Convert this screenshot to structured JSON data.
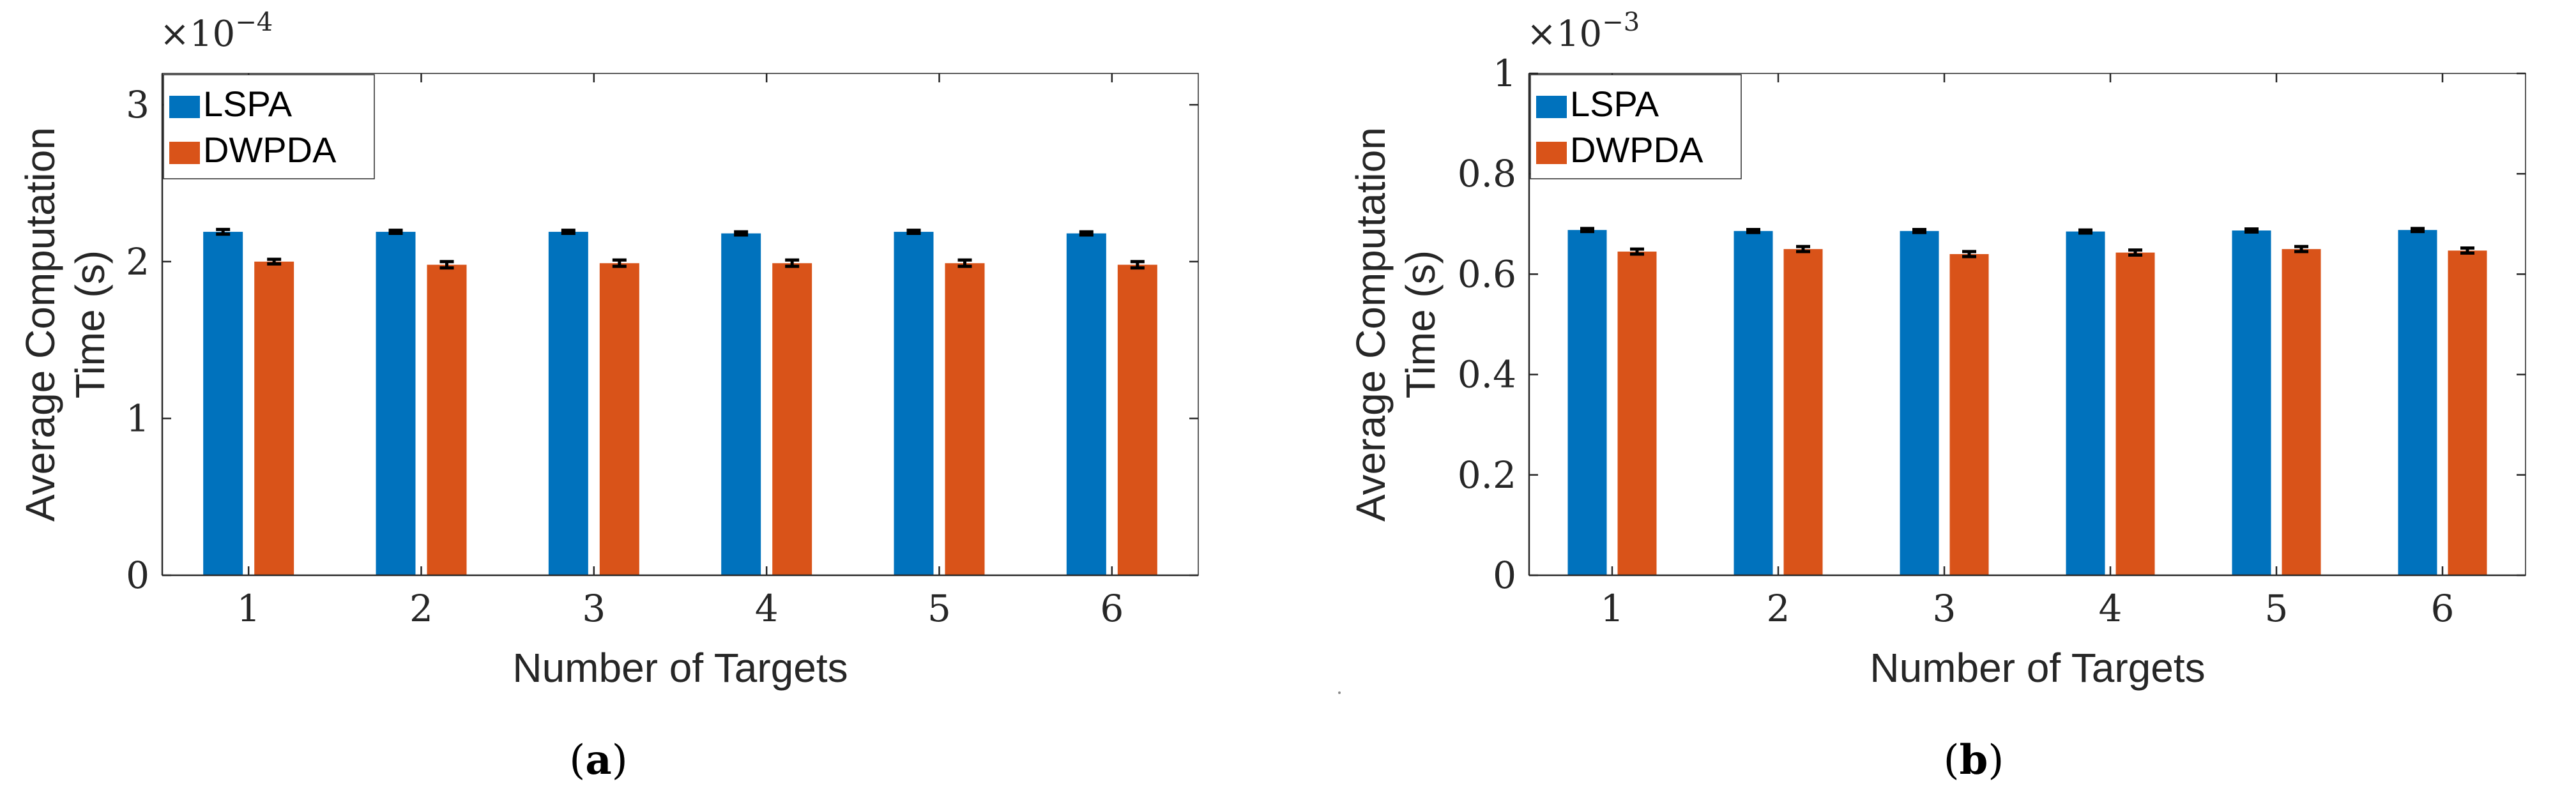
{
  "chart_data": [
    {
      "type": "bar",
      "panel_label": "a",
      "title": "",
      "xlabel": "Number of Targets",
      "ylabel_line1": "Average Computation",
      "ylabel_line2": "Time (s)",
      "y_multiplier": "×10",
      "y_exponent": "−4",
      "categories": [
        "1",
        "2",
        "3",
        "4",
        "5",
        "6"
      ],
      "ylim": [
        0,
        3.2
      ],
      "yticks": [
        0,
        1,
        2,
        3
      ],
      "ytick_labels": [
        "0",
        "1",
        "2",
        "3"
      ],
      "series": [
        {
          "name": "LSPA",
          "color": "#0072BD",
          "values": [
            2.19,
            2.19,
            2.19,
            2.18,
            2.19,
            2.18
          ],
          "errors": [
            0.015,
            0.01,
            0.01,
            0.01,
            0.01,
            0.01
          ]
        },
        {
          "name": "DWPDA",
          "color": "#D95319",
          "values": [
            2.0,
            1.98,
            1.99,
            1.99,
            1.99,
            1.98
          ],
          "errors": [
            0.015,
            0.02,
            0.02,
            0.02,
            0.02,
            0.02
          ]
        }
      ],
      "legend": "top-left"
    },
    {
      "type": "bar",
      "panel_label": "b",
      "title": "",
      "xlabel": "Number of Targets",
      "ylabel_line1": "Average Computation",
      "ylabel_line2": "Time (s)",
      "y_multiplier": "×10",
      "y_exponent": "−3",
      "categories": [
        "1",
        "2",
        "3",
        "4",
        "5",
        "6"
      ],
      "ylim": [
        0,
        1.0
      ],
      "yticks": [
        0,
        0.2,
        0.4,
        0.6,
        0.8,
        1.0
      ],
      "ytick_labels": [
        "0",
        "0.2",
        "0.4",
        "0.6",
        "0.8",
        "1"
      ],
      "series": [
        {
          "name": "LSPA",
          "color": "#0072BD",
          "values": [
            0.688,
            0.686,
            0.686,
            0.685,
            0.687,
            0.688
          ],
          "errors": [
            0.003,
            0.003,
            0.003,
            0.003,
            0.003,
            0.003
          ]
        },
        {
          "name": "DWPDA",
          "color": "#D95319",
          "values": [
            0.645,
            0.65,
            0.64,
            0.643,
            0.65,
            0.647
          ],
          "errors": [
            0.005,
            0.005,
            0.005,
            0.005,
            0.005,
            0.005
          ]
        }
      ],
      "legend": "top-left"
    }
  ]
}
